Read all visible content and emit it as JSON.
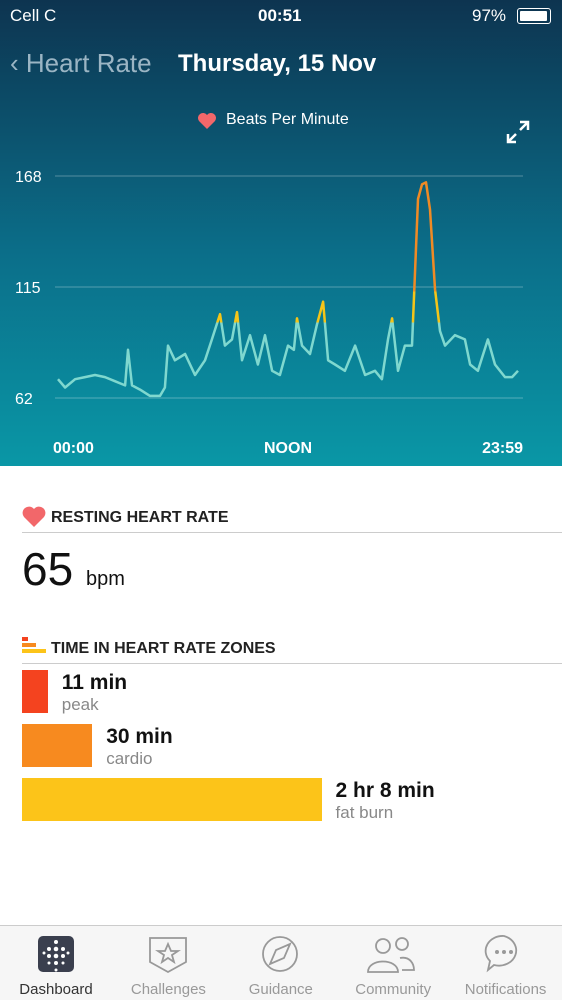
{
  "status_bar": {
    "carrier": "Cell C",
    "time": "00:51",
    "battery": "97%"
  },
  "header": {
    "back": "Heart Rate",
    "title": "Thursday, 15 Nov"
  },
  "chart_data": {
    "type": "line",
    "x": [
      0,
      0.37,
      0.89,
      1.41,
      1.93,
      2.45,
      2.97,
      3.5,
      3.65,
      3.86,
      4.28,
      4.8,
      5.32,
      5.58,
      5.74,
      6.1,
      6.63,
      7.15,
      7.67,
      8.03,
      8.45,
      8.71,
      9.08,
      9.34,
      9.6,
      10.02,
      10.43,
      10.8,
      11.17,
      11.58,
      12,
      12.31,
      12.47,
      12.73,
      13.15,
      13.51,
      13.83,
      14.09,
      14.45,
      14.97,
      15.5,
      16.02,
      16.54,
      16.9,
      17.22,
      17.43,
      17.74,
      18.1,
      18.47,
      18.63,
      18.78,
      18.99,
      19.2,
      19.41,
      19.67,
      19.93,
      20.19,
      20.71,
      21.23,
      21.5,
      21.91,
      22.43,
      22.8,
      23.32,
      23.69,
      24
    ],
    "series": [
      {
        "name": "Beats Per Minute",
        "color": "#7fd8cf",
        "values": [
          71,
          67,
          71,
          72,
          73,
          72,
          70,
          68,
          85,
          68,
          66,
          63,
          63,
          67,
          87,
          80,
          83,
          73,
          80,
          90,
          102,
          87,
          90,
          103,
          80,
          92,
          78,
          92,
          75,
          73,
          87,
          85,
          100,
          87,
          83,
          97,
          108,
          80,
          78,
          75,
          87,
          73,
          75,
          71,
          90,
          100,
          75,
          87,
          87,
          123,
          157,
          164,
          165,
          152,
          114,
          94,
          87,
          92,
          90,
          78,
          75,
          90,
          78,
          72,
          72,
          75
        ]
      }
    ],
    "xlim": [
      0,
      24
    ],
    "xticks": [
      {
        "value": 0,
        "label": "00:00"
      },
      {
        "value": 12,
        "label": "NOON"
      },
      {
        "value": 24,
        "label": "23:59"
      }
    ],
    "ylim": [
      62,
      168
    ],
    "yticks": [
      62,
      115,
      168
    ],
    "grid": true
  },
  "resting": {
    "title": "RESTING HEART RATE",
    "value": 65,
    "unit": "bpm"
  },
  "zones": {
    "title": "TIME IN HEART RATE ZONES",
    "items": [
      {
        "value": 11,
        "label": "11 min",
        "name": "peak",
        "color": "#f4431f"
      },
      {
        "value": 30,
        "label": "30 min",
        "name": "cardio",
        "color": "#f78a1f"
      },
      {
        "value": 128,
        "label": "2 hr 8 min",
        "name": "fat burn",
        "color": "#fcc419"
      }
    ]
  },
  "tabs": [
    "Dashboard",
    "Challenges",
    "Guidance",
    "Community",
    "Notifications"
  ]
}
